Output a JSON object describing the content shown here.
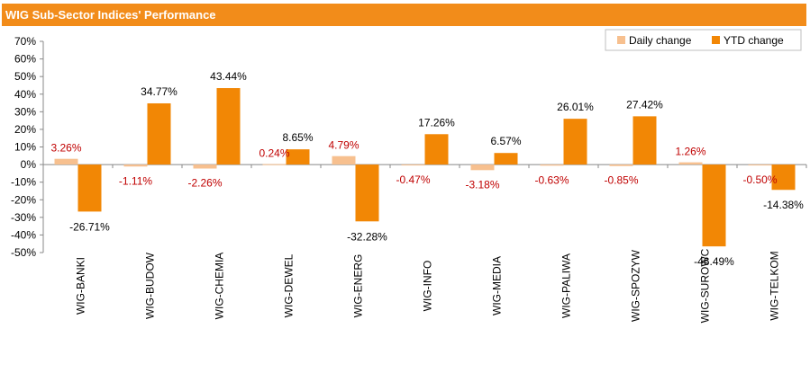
{
  "header": {
    "title": "WIG Sub-Sector Indices' Performance"
  },
  "colors": {
    "header_bg": "#f28c1a",
    "daily": "#f7c08f",
    "ytd": "#f28705",
    "daily_label": "#c00000",
    "ytd_label": "#000000"
  },
  "chart_data": {
    "type": "bar",
    "categories": [
      "WIG-BANKI",
      "WIG-BUDOW",
      "WIG-CHEMIA",
      "WIG-DEWEL",
      "WIG-ENERG",
      "WIG-INFO",
      "WIG-MEDIA",
      "WIG-PALIWA",
      "WIG-SPOZYW",
      "WIG-SUROWC",
      "WIG-TELKOM"
    ],
    "series": [
      {
        "name": "Daily change",
        "values": [
          3.26,
          -1.11,
          -2.26,
          0.24,
          4.79,
          -0.47,
          -3.18,
          -0.63,
          -0.85,
          1.26,
          -0.5
        ],
        "labels": [
          "3.26%",
          "-1.11%",
          "-2.26%",
          "0.24%",
          "4.79%",
          "-0.47%",
          "-3.18%",
          "-0.63%",
          "-0.85%",
          "1.26%",
          "-0.50%"
        ]
      },
      {
        "name": "YTD change",
        "values": [
          -26.71,
          34.77,
          43.44,
          8.65,
          -32.28,
          17.26,
          6.57,
          26.01,
          27.42,
          -46.49,
          -14.38
        ],
        "labels": [
          "-26.71%",
          "34.77%",
          "43.44%",
          "8.65%",
          "-32.28%",
          "17.26%",
          "6.57%",
          "26.01%",
          "27.42%",
          "-46.49%",
          "-14.38%"
        ]
      }
    ],
    "ylim": [
      -50,
      70
    ],
    "yticks": [
      70,
      60,
      50,
      40,
      30,
      20,
      10,
      0,
      -10,
      -20,
      -30,
      -40,
      -50
    ],
    "ytick_labels": [
      "70%",
      "60%",
      "50%",
      "40%",
      "30%",
      "20%",
      "10%",
      "0%",
      "-10%",
      "-20%",
      "-30%",
      "-40%",
      "-50%"
    ],
    "legend_position": "top-right",
    "grid": false
  }
}
